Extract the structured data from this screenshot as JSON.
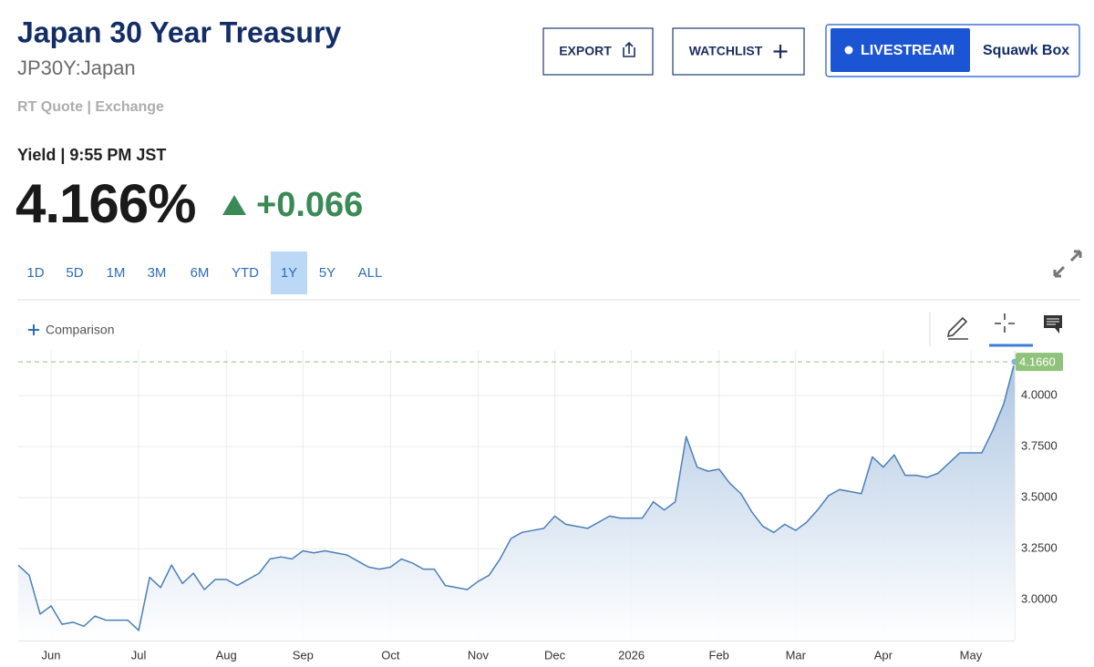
{
  "header": {
    "title": "Japan 30 Year Treasury",
    "symbol": "JP30Y:Japan",
    "quote_source": "RT Quote | Exchange",
    "quote_time": "Yield | 9:55 PM JST",
    "price": "4.166%",
    "change": "+0.066"
  },
  "buttons": {
    "export": "EXPORT",
    "watchlist": "WATCHLIST",
    "livestream": "LIVESTREAM",
    "squawk": "Squawk Box"
  },
  "ranges": {
    "options": [
      "1D",
      "5D",
      "1M",
      "3M",
      "6M",
      "YTD",
      "1Y",
      "5Y",
      "ALL"
    ],
    "selected": 6
  },
  "comparison": "Comparison",
  "chart_data": {
    "type": "area",
    "categories": [
      null,
      null,
      null,
      "Jun",
      null,
      null,
      null,
      null,
      null,
      null,
      null,
      "Jul",
      null,
      null,
      null,
      null,
      null,
      null,
      null,
      "Aug",
      null,
      null,
      null,
      null,
      null,
      null,
      "Sep",
      null,
      null,
      null,
      null,
      null,
      null,
      null,
      "Oct",
      null,
      null,
      null,
      null,
      null,
      null,
      null,
      "Nov",
      null,
      null,
      null,
      null,
      null,
      null,
      "Dec",
      null,
      null,
      null,
      null,
      null,
      null,
      "2026",
      null,
      null,
      null,
      null,
      null,
      null,
      null,
      "Feb",
      null,
      null,
      null,
      null,
      null,
      null,
      "Mar",
      null,
      null,
      null,
      null,
      null,
      null,
      null,
      "Apr",
      null,
      null,
      null,
      null,
      null,
      null,
      null,
      "May",
      null,
      null,
      null,
      null
    ],
    "values": [
      3.17,
      3.12,
      2.93,
      2.97,
      2.88,
      2.89,
      2.87,
      2.92,
      2.9,
      2.9,
      2.9,
      2.85,
      3.11,
      3.06,
      3.17,
      3.08,
      3.13,
      3.05,
      3.1,
      3.1,
      3.07,
      3.1,
      3.13,
      3.2,
      3.21,
      3.2,
      3.24,
      3.23,
      3.24,
      3.23,
      3.22,
      3.19,
      3.16,
      3.15,
      3.16,
      3.2,
      3.18,
      3.15,
      3.15,
      3.07,
      3.06,
      3.05,
      3.09,
      3.12,
      3.2,
      3.3,
      3.33,
      3.34,
      3.35,
      3.41,
      3.37,
      3.36,
      3.35,
      3.38,
      3.41,
      3.4,
      3.4,
      3.4,
      3.48,
      3.44,
      3.48,
      3.8,
      3.65,
      3.63,
      3.64,
      3.57,
      3.52,
      3.43,
      3.36,
      3.33,
      3.37,
      3.34,
      3.38,
      3.44,
      3.51,
      3.54,
      3.53,
      3.52,
      3.7,
      3.65,
      3.71,
      3.61,
      3.61,
      3.6,
      3.62,
      3.67,
      3.72,
      3.72,
      3.72,
      3.83,
      3.96,
      4.166
    ],
    "color": "#4a7fb8",
    "ylim": [
      2.8,
      4.22
    ],
    "yticks": [
      {
        "value": 3,
        "label": "3.0000"
      },
      {
        "value": 3.25,
        "label": "3.2500"
      },
      {
        "value": 3.5,
        "label": "3.5000"
      },
      {
        "value": 3.75,
        "label": "3.7500"
      },
      {
        "value": 4,
        "label": "4.0000"
      }
    ],
    "reference_line": {
      "value": 4.166,
      "label": "4.1660",
      "color": "#8fc27a"
    },
    "grid": true
  }
}
